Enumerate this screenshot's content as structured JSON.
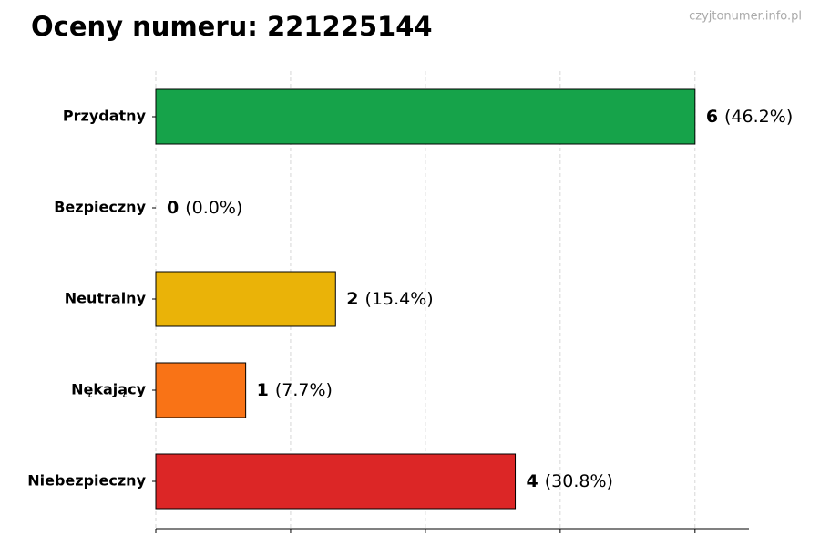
{
  "chart_data": {
    "type": "bar",
    "orientation": "horizontal",
    "title": "Oceny numeru: 221225144",
    "watermark": "czyjtonumer.info.pl",
    "categories": [
      "Przydatny",
      "Bezpieczny",
      "Neutralny",
      "Nękający",
      "Niebezpieczny"
    ],
    "values": [
      6,
      0,
      2,
      1,
      4
    ],
    "share_labels": [
      "(46.2%)",
      "(0.0%)",
      "(15.4%)",
      "(7.7%)",
      "(30.8%)"
    ],
    "colors": [
      "#16a34a",
      "#2563eb",
      "#eab308",
      "#f97316",
      "#dc2626"
    ],
    "xlim": [
      0,
      6.6
    ],
    "xticks": [
      0,
      1.5,
      3,
      4.5,
      6
    ],
    "grid": true
  }
}
